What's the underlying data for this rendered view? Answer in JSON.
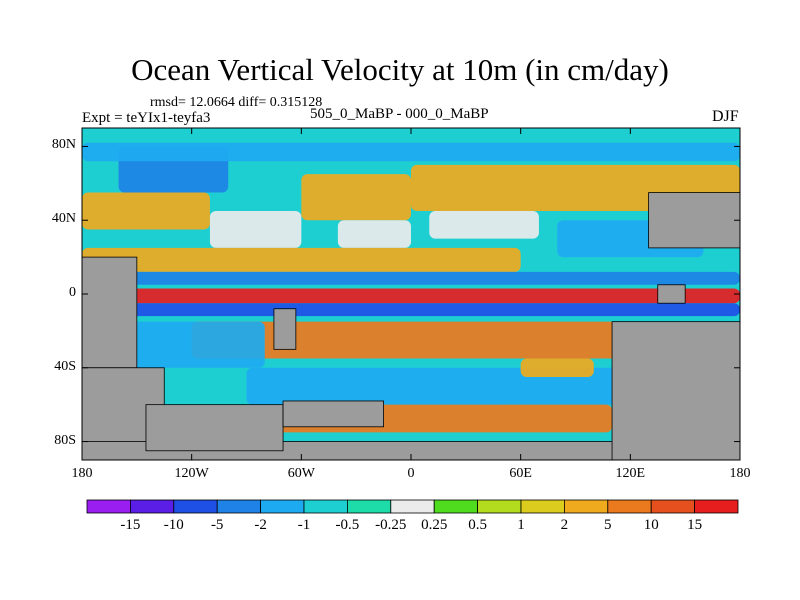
{
  "title": "Ocean Vertical Velocity at 10m (in cm/day)",
  "stats": "rmsd= 12.0664 diff= 0.315128",
  "experiment": "Expt = teYIx1-teyfa3",
  "difference_label": "505_0_MaBP - 000_0_MaBP",
  "season": "DJF",
  "map": {
    "projection": "cylindrical equidistant",
    "lon_range": [
      -180,
      180
    ],
    "lat_range": [
      -90,
      90
    ],
    "lat_ticks": [
      {
        "value": 80,
        "label": "80N"
      },
      {
        "value": 40,
        "label": "40N"
      },
      {
        "value": 0,
        "label": "0"
      },
      {
        "value": -40,
        "label": "40S"
      },
      {
        "value": -80,
        "label": "80S"
      }
    ],
    "lon_ticks": [
      {
        "value": -180,
        "label": "180"
      },
      {
        "value": -120,
        "label": "120W"
      },
      {
        "value": -60,
        "label": "60W"
      },
      {
        "value": 0,
        "label": "0"
      },
      {
        "value": 60,
        "label": "60E"
      },
      {
        "value": 120,
        "label": "120E"
      },
      {
        "value": 180,
        "label": "180"
      }
    ],
    "land_color": "#9c9c9c",
    "missing_color": "#ebebeb"
  },
  "colorbar": {
    "colors": [
      "#9a1ef0",
      "#5a1ee6",
      "#1e50e6",
      "#1e82e6",
      "#1eaaf0",
      "#1ecfd2",
      "#1edcaa",
      "#ebebeb",
      "#50dc1e",
      "#b4dc1e",
      "#dccc1e",
      "#f0aa1e",
      "#eb7a1e",
      "#e6501e",
      "#e61e1e"
    ],
    "levels": [
      {
        "value": -15,
        "label": "-15"
      },
      {
        "value": -10,
        "label": "-10"
      },
      {
        "value": -5,
        "label": "-5"
      },
      {
        "value": -2,
        "label": "-2"
      },
      {
        "value": -1,
        "label": "-1"
      },
      {
        "value": -0.5,
        "label": "-0.5"
      },
      {
        "value": -0.25,
        "label": "-0.25"
      },
      {
        "value": 0.25,
        "label": "0.25"
      },
      {
        "value": 0.5,
        "label": "0.5"
      },
      {
        "value": 1,
        "label": "1"
      },
      {
        "value": 2,
        "label": "2"
      },
      {
        "value": 5,
        "label": "5"
      },
      {
        "value": 10,
        "label": "10"
      },
      {
        "value": 15,
        "label": "15"
      }
    ]
  },
  "field_zones": [
    {
      "name": "north-pacific-upper",
      "lon": [
        -160,
        -100
      ],
      "lat": [
        55,
        80
      ],
      "value": -5
    },
    {
      "name": "arctic-band",
      "lon": [
        -180,
        180
      ],
      "lat": [
        72,
        82
      ],
      "value": -2
    },
    {
      "name": "north-pacific-positive",
      "lon": [
        -180,
        -110
      ],
      "lat": [
        35,
        55
      ],
      "value": 2
    },
    {
      "name": "north-pacific-white",
      "lon": [
        -110,
        -60
      ],
      "lat": [
        25,
        45
      ],
      "value": 0
    },
    {
      "name": "north-atlantic-positive",
      "lon": [
        -60,
        0
      ],
      "lat": [
        40,
        65
      ],
      "value": 2
    },
    {
      "name": "north-atlantic-white",
      "lon": [
        -40,
        0
      ],
      "lat": [
        25,
        40
      ],
      "value": 0
    },
    {
      "name": "eurasia-north-positive",
      "lon": [
        0,
        180
      ],
      "lat": [
        45,
        70
      ],
      "value": 2
    },
    {
      "name": "eurasia-white",
      "lon": [
        10,
        70
      ],
      "lat": [
        30,
        45
      ],
      "value": 0
    },
    {
      "name": "northwest-pacific-negative",
      "lon": [
        80,
        160
      ],
      "lat": [
        20,
        40
      ],
      "value": -2
    },
    {
      "name": "subtropical-north-positive",
      "lon": [
        -180,
        60
      ],
      "lat": [
        12,
        25
      ],
      "value": 2
    },
    {
      "name": "north-equatorial-negative",
      "lon": [
        -180,
        180
      ],
      "lat": [
        5,
        12
      ],
      "value": -5
    },
    {
      "name": "equatorial-upwelling",
      "lon": [
        -180,
        180
      ],
      "lat": [
        -5,
        3
      ],
      "value": 15
    },
    {
      "name": "south-equatorial-negative",
      "lon": [
        -180,
        180
      ],
      "lat": [
        -12,
        -5
      ],
      "value": -10
    },
    {
      "name": "south-subtropical-positive",
      "lon": [
        -120,
        120
      ],
      "lat": [
        -35,
        -15
      ],
      "value": 5
    },
    {
      "name": "south-pacific-negative",
      "lon": [
        -180,
        -80
      ],
      "lat": [
        -40,
        -15
      ],
      "value": -2
    },
    {
      "name": "southern-ocean-negative",
      "lon": [
        -90,
        120
      ],
      "lat": [
        -60,
        -40
      ],
      "value": -2
    },
    {
      "name": "circumpolar-positive",
      "lon": [
        -90,
        110
      ],
      "lat": [
        -75,
        -60
      ],
      "value": 5
    },
    {
      "name": "indian-south-positive",
      "lon": [
        60,
        100
      ],
      "lat": [
        -45,
        -35
      ],
      "value": 2
    }
  ],
  "land_regions": [
    {
      "name": "western-continent-margin",
      "lon": [
        -180,
        -150
      ],
      "lat": [
        -40,
        20
      ]
    },
    {
      "name": "southwest-landmass",
      "lon": [
        -180,
        -135
      ],
      "lat": [
        -90,
        -40
      ]
    },
    {
      "name": "south-polar-continent",
      "lon": [
        -180,
        115
      ],
      "lat": [
        -90,
        -80
      ]
    },
    {
      "name": "south-atlantic-landmass",
      "lon": [
        -145,
        -70
      ],
      "lat": [
        -85,
        -60
      ]
    },
    {
      "name": "central-southern-island",
      "lon": [
        -70,
        -15
      ],
      "lat": [
        -72,
        -58
      ]
    },
    {
      "name": "central-small-landmass",
      "lon": [
        -75,
        -63
      ],
      "lat": [
        -30,
        -8
      ]
    },
    {
      "name": "eastern-continent",
      "lon": [
        110,
        180
      ],
      "lat": [
        -90,
        -15
      ]
    },
    {
      "name": "eastern-block",
      "lon": [
        130,
        180
      ],
      "lat": [
        25,
        55
      ]
    },
    {
      "name": "east-equatorial-patch",
      "lon": [
        135,
        150
      ],
      "lat": [
        -5,
        5
      ]
    }
  ]
}
